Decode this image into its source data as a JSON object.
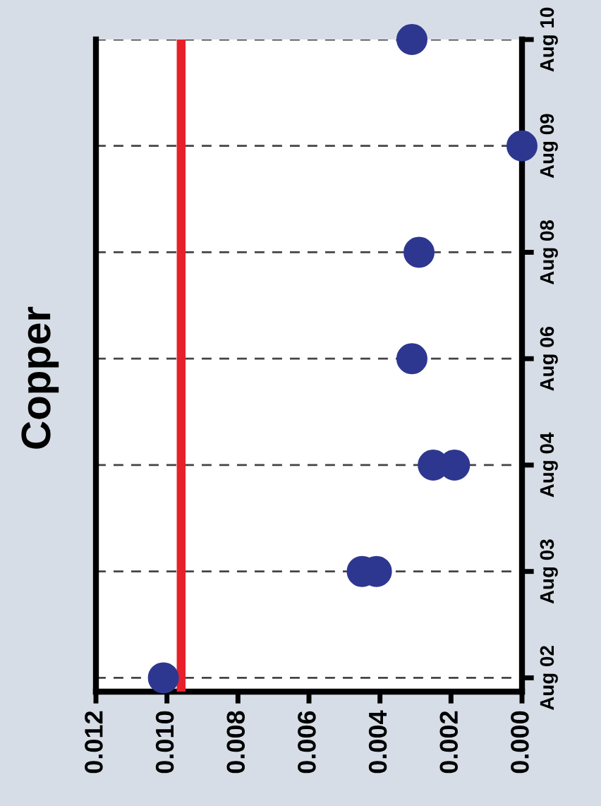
{
  "chart_data": {
    "type": "scatter",
    "title": "Copper",
    "orientation": "horizontal",
    "categories": [
      "Aug 10",
      "Aug 09",
      "Aug 08",
      "Aug 06",
      "Aug 04",
      "Aug 03",
      "Aug 02"
    ],
    "series": [
      {
        "color": "#2e3790",
        "values": [
          0.0031,
          0.0,
          0.0029,
          0.0031,
          0.0025,
          0.0045,
          0.0101
        ]
      },
      {
        "color": "#2e3790",
        "values": [
          null,
          null,
          null,
          null,
          0.0019,
          0.0041,
          null
        ]
      }
    ],
    "xlim": [
      0.012,
      0.0
    ],
    "xticks": [
      {
        "value": 0.012,
        "label": "0.012"
      },
      {
        "value": 0.01,
        "label": "0.010"
      },
      {
        "value": 0.008,
        "label": "0.008"
      },
      {
        "value": 0.006,
        "label": "0.006"
      },
      {
        "value": 0.004,
        "label": "0.004"
      },
      {
        "value": 0.002,
        "label": "0.002"
      },
      {
        "value": 0.0,
        "label": "0.000"
      }
    ],
    "ref_lines": [
      {
        "axis": "x",
        "value": 0.0096,
        "color": "#e8202a"
      }
    ],
    "grid": "y",
    "marker": "circle",
    "legend": false
  }
}
